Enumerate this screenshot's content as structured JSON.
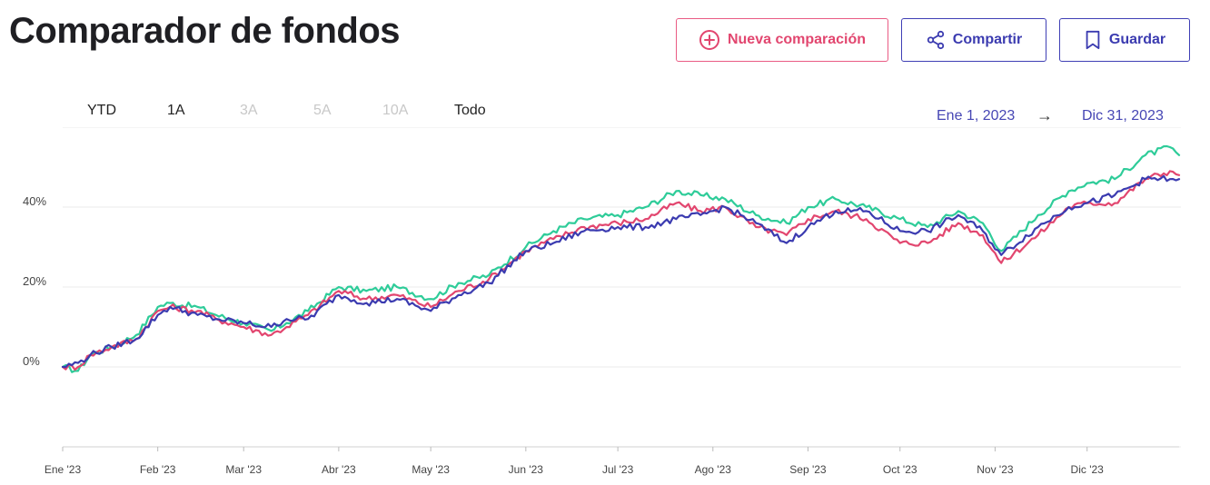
{
  "header": {
    "title": "Comparador de fondos",
    "buttons": {
      "new_comparison": "Nueva comparación",
      "share": "Compartir",
      "save": "Guardar"
    }
  },
  "range_tabs": [
    {
      "label": "YTD",
      "enabled": true
    },
    {
      "label": "1A",
      "enabled": true
    },
    {
      "label": "3A",
      "enabled": false
    },
    {
      "label": "5A",
      "enabled": false
    },
    {
      "label": "10A",
      "enabled": false
    },
    {
      "label": "Todo",
      "enabled": true
    }
  ],
  "date_range": {
    "start": "Ene 1, 2023",
    "arrow": "→",
    "end": "Dic 31, 2023"
  },
  "colors": {
    "accent_pink": "#e2466f",
    "accent_blue": "#3b3bb0",
    "accent_green": "#2ecc99"
  },
  "chart_data": {
    "type": "line",
    "title": "",
    "xlabel": "",
    "ylabel": "",
    "x_ticks": [
      "Ene '23",
      "Feb '23",
      "Mar '23",
      "Abr '23",
      "May '23",
      "Jun '23",
      "Jul '23",
      "Ago '23",
      "Sep '23",
      "Oct '23",
      "Nov '23",
      "Dic '23"
    ],
    "y_ticks": [
      {
        "value": 0,
        "label": "0%"
      },
      {
        "value": 20,
        "label": "20%"
      },
      {
        "value": 40,
        "label": "40%"
      }
    ],
    "ylim": [
      -20,
      60
    ],
    "xlim": [
      "2023-01-01",
      "2023-12-31"
    ],
    "grid": true,
    "legend": "none",
    "series": [
      {
        "color": "#2ecc99",
        "points": [
          [
            "2023-01-01",
            0
          ],
          [
            "2023-01-06",
            -1
          ],
          [
            "2023-01-10",
            3
          ],
          [
            "2023-01-17",
            5
          ],
          [
            "2023-01-25",
            8
          ],
          [
            "2023-02-01",
            15
          ],
          [
            "2023-02-05",
            16
          ],
          [
            "2023-02-14",
            15
          ],
          [
            "2023-02-20",
            13
          ],
          [
            "2023-03-01",
            11
          ],
          [
            "2023-03-10",
            9
          ],
          [
            "2023-03-15",
            11
          ],
          [
            "2023-03-22",
            14
          ],
          [
            "2023-04-01",
            20
          ],
          [
            "2023-04-10",
            19
          ],
          [
            "2023-04-20",
            20
          ],
          [
            "2023-05-01",
            17
          ],
          [
            "2023-05-10",
            21
          ],
          [
            "2023-05-20",
            23
          ],
          [
            "2023-06-01",
            30
          ],
          [
            "2023-06-10",
            34
          ],
          [
            "2023-06-20",
            37
          ],
          [
            "2023-07-01",
            38
          ],
          [
            "2023-07-10",
            40
          ],
          [
            "2023-07-20",
            44
          ],
          [
            "2023-07-28",
            43
          ],
          [
            "2023-08-05",
            42
          ],
          [
            "2023-08-15",
            38
          ],
          [
            "2023-08-25",
            36
          ],
          [
            "2023-09-01",
            40
          ],
          [
            "2023-09-10",
            42
          ],
          [
            "2023-09-20",
            40
          ],
          [
            "2023-10-01",
            37
          ],
          [
            "2023-10-10",
            35
          ],
          [
            "2023-10-20",
            39
          ],
          [
            "2023-10-28",
            36
          ],
          [
            "2023-11-03",
            29
          ],
          [
            "2023-11-15",
            38
          ],
          [
            "2023-11-25",
            44
          ],
          [
            "2023-12-01",
            46
          ],
          [
            "2023-12-10",
            47
          ],
          [
            "2023-12-20",
            53
          ],
          [
            "2023-12-28",
            55
          ],
          [
            "2023-12-31",
            53
          ]
        ]
      },
      {
        "color": "#e2466f",
        "points": [
          [
            "2023-01-01",
            0
          ],
          [
            "2023-01-06",
            0
          ],
          [
            "2023-01-10",
            3
          ],
          [
            "2023-01-17",
            5
          ],
          [
            "2023-01-25",
            7
          ],
          [
            "2023-02-01",
            14
          ],
          [
            "2023-02-05",
            15
          ],
          [
            "2023-02-14",
            14
          ],
          [
            "2023-02-20",
            12
          ],
          [
            "2023-03-01",
            10
          ],
          [
            "2023-03-10",
            8
          ],
          [
            "2023-03-15",
            10
          ],
          [
            "2023-03-22",
            13
          ],
          [
            "2023-04-01",
            19
          ],
          [
            "2023-04-10",
            17
          ],
          [
            "2023-04-20",
            18
          ],
          [
            "2023-05-01",
            15
          ],
          [
            "2023-05-10",
            19
          ],
          [
            "2023-05-20",
            22
          ],
          [
            "2023-06-01",
            29
          ],
          [
            "2023-06-10",
            32
          ],
          [
            "2023-06-20",
            35
          ],
          [
            "2023-07-01",
            36
          ],
          [
            "2023-07-10",
            37
          ],
          [
            "2023-07-20",
            41
          ],
          [
            "2023-07-28",
            39
          ],
          [
            "2023-08-05",
            40
          ],
          [
            "2023-08-15",
            35
          ],
          [
            "2023-08-25",
            33
          ],
          [
            "2023-09-01",
            37
          ],
          [
            "2023-09-10",
            39
          ],
          [
            "2023-09-20",
            37
          ],
          [
            "2023-10-01",
            31
          ],
          [
            "2023-10-10",
            31
          ],
          [
            "2023-10-20",
            36
          ],
          [
            "2023-10-28",
            33
          ],
          [
            "2023-11-03",
            26
          ],
          [
            "2023-11-15",
            33
          ],
          [
            "2023-11-25",
            40
          ],
          [
            "2023-12-01",
            41
          ],
          [
            "2023-12-10",
            41
          ],
          [
            "2023-12-20",
            47
          ],
          [
            "2023-12-28",
            49
          ],
          [
            "2023-12-31",
            48
          ]
        ]
      },
      {
        "color": "#3b3bb0",
        "points": [
          [
            "2023-01-01",
            0
          ],
          [
            "2023-01-06",
            1
          ],
          [
            "2023-01-10",
            3
          ],
          [
            "2023-01-17",
            5
          ],
          [
            "2023-01-25",
            7
          ],
          [
            "2023-02-01",
            13
          ],
          [
            "2023-02-05",
            15
          ],
          [
            "2023-02-14",
            13
          ],
          [
            "2023-02-20",
            12
          ],
          [
            "2023-03-01",
            11
          ],
          [
            "2023-03-10",
            10
          ],
          [
            "2023-03-15",
            12
          ],
          [
            "2023-03-22",
            12
          ],
          [
            "2023-04-01",
            18
          ],
          [
            "2023-04-10",
            16
          ],
          [
            "2023-04-20",
            17
          ],
          [
            "2023-05-01",
            14
          ],
          [
            "2023-05-10",
            18
          ],
          [
            "2023-05-20",
            21
          ],
          [
            "2023-06-01",
            29
          ],
          [
            "2023-06-10",
            31
          ],
          [
            "2023-06-20",
            34
          ],
          [
            "2023-07-01",
            35
          ],
          [
            "2023-07-10",
            35
          ],
          [
            "2023-07-20",
            37
          ],
          [
            "2023-07-28",
            38
          ],
          [
            "2023-08-05",
            40
          ],
          [
            "2023-08-15",
            36
          ],
          [
            "2023-08-25",
            31
          ],
          [
            "2023-09-01",
            35
          ],
          [
            "2023-09-10",
            39
          ],
          [
            "2023-09-20",
            39
          ],
          [
            "2023-10-01",
            34
          ],
          [
            "2023-10-10",
            34
          ],
          [
            "2023-10-20",
            38
          ],
          [
            "2023-10-28",
            34
          ],
          [
            "2023-11-03",
            28
          ],
          [
            "2023-11-15",
            35
          ],
          [
            "2023-11-25",
            40
          ],
          [
            "2023-12-01",
            41
          ],
          [
            "2023-12-10",
            43
          ],
          [
            "2023-12-20",
            47
          ],
          [
            "2023-12-28",
            47
          ],
          [
            "2023-12-31",
            47
          ]
        ]
      }
    ]
  }
}
